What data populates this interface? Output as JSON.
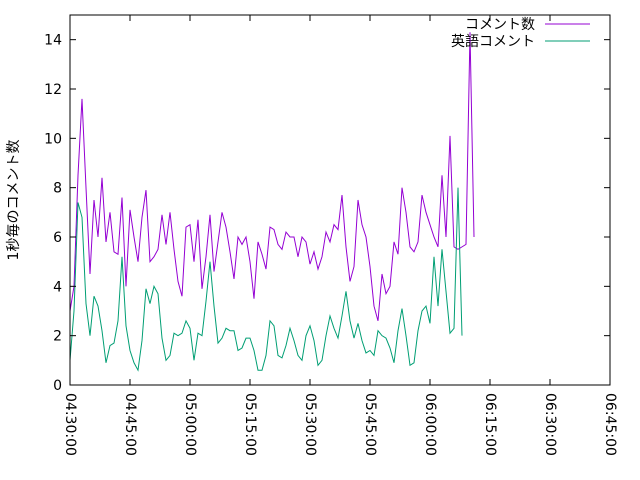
{
  "chart_data": {
    "type": "line",
    "title": "",
    "xlabel": "",
    "ylabel": "1秒毎のコメント数",
    "xlim": [
      "04:30:00",
      "06:45:00"
    ],
    "ylim": [
      0,
      15
    ],
    "x_ticks": [
      "04:30:00",
      "04:45:00",
      "05:00:00",
      "05:15:00",
      "05:30:00",
      "05:45:00",
      "06:00:00",
      "06:15:00",
      "06:30:00",
      "06:45:00"
    ],
    "y_ticks": [
      0,
      2,
      4,
      6,
      8,
      10,
      12,
      14
    ],
    "grid": false,
    "legend_position": "top-right",
    "series": [
      {
        "name": "コメント数",
        "color": "#9400d3",
        "points": [
          [
            "04:30:00",
            3.0
          ],
          [
            "04:31:00",
            4.0
          ],
          [
            "04:32:00",
            8.5
          ],
          [
            "04:33:00",
            11.6
          ],
          [
            "04:34:00",
            8.0
          ],
          [
            "04:35:00",
            4.5
          ],
          [
            "04:36:00",
            7.5
          ],
          [
            "04:37:00",
            6.0
          ],
          [
            "04:38:00",
            8.4
          ],
          [
            "04:39:00",
            5.8
          ],
          [
            "04:40:00",
            7.0
          ],
          [
            "04:41:00",
            5.4
          ],
          [
            "04:42:00",
            5.3
          ],
          [
            "04:43:00",
            7.6
          ],
          [
            "04:44:00",
            4.0
          ],
          [
            "04:45:00",
            7.1
          ],
          [
            "04:46:00",
            6.0
          ],
          [
            "04:47:00",
            5.0
          ],
          [
            "04:48:00",
            6.8
          ],
          [
            "04:49:00",
            7.9
          ],
          [
            "04:50:00",
            5.0
          ],
          [
            "04:51:00",
            5.2
          ],
          [
            "04:52:00",
            5.5
          ],
          [
            "04:53:00",
            6.9
          ],
          [
            "04:54:00",
            5.7
          ],
          [
            "04:55:00",
            7.0
          ],
          [
            "04:56:00",
            5.5
          ],
          [
            "04:57:00",
            4.2
          ],
          [
            "04:58:00",
            3.6
          ],
          [
            "04:59:00",
            6.4
          ],
          [
            "05:00:00",
            6.5
          ],
          [
            "05:01:00",
            5.0
          ],
          [
            "05:02:00",
            6.7
          ],
          [
            "05:03:00",
            3.9
          ],
          [
            "05:04:00",
            5.2
          ],
          [
            "05:05:00",
            6.9
          ],
          [
            "05:06:00",
            4.6
          ],
          [
            "05:07:00",
            5.8
          ],
          [
            "05:08:00",
            7.0
          ],
          [
            "05:09:00",
            6.4
          ],
          [
            "05:10:00",
            5.4
          ],
          [
            "05:11:00",
            4.3
          ],
          [
            "05:12:00",
            6.0
          ],
          [
            "05:13:00",
            5.7
          ],
          [
            "05:14:00",
            6.0
          ],
          [
            "05:15:00",
            5.0
          ],
          [
            "05:16:00",
            3.5
          ],
          [
            "05:17:00",
            5.8
          ],
          [
            "05:18:00",
            5.3
          ],
          [
            "05:19:00",
            4.7
          ],
          [
            "05:20:00",
            6.4
          ],
          [
            "05:21:00",
            6.3
          ],
          [
            "05:22:00",
            5.7
          ],
          [
            "05:23:00",
            5.5
          ],
          [
            "05:24:00",
            6.2
          ],
          [
            "05:25:00",
            6.0
          ],
          [
            "05:26:00",
            6.0
          ],
          [
            "05:27:00",
            5.2
          ],
          [
            "05:28:00",
            6.0
          ],
          [
            "05:29:00",
            5.8
          ],
          [
            "05:30:00",
            4.9
          ],
          [
            "05:31:00",
            5.4
          ],
          [
            "05:32:00",
            4.7
          ],
          [
            "05:33:00",
            5.2
          ],
          [
            "05:34:00",
            6.2
          ],
          [
            "05:35:00",
            5.8
          ],
          [
            "05:36:00",
            6.5
          ],
          [
            "05:37:00",
            6.3
          ],
          [
            "05:38:00",
            7.7
          ],
          [
            "05:39:00",
            5.6
          ],
          [
            "05:40:00",
            4.2
          ],
          [
            "05:41:00",
            4.8
          ],
          [
            "05:42:00",
            7.5
          ],
          [
            "05:43:00",
            6.5
          ],
          [
            "05:44:00",
            6.0
          ],
          [
            "05:45:00",
            4.8
          ],
          [
            "05:46:00",
            3.2
          ],
          [
            "05:47:00",
            2.6
          ],
          [
            "05:48:00",
            4.5
          ],
          [
            "05:49:00",
            3.7
          ],
          [
            "05:50:00",
            4.0
          ],
          [
            "05:51:00",
            5.8
          ],
          [
            "05:52:00",
            5.3
          ],
          [
            "05:53:00",
            8.0
          ],
          [
            "05:54:00",
            7.0
          ],
          [
            "05:55:00",
            5.6
          ],
          [
            "05:56:00",
            5.4
          ],
          [
            "05:57:00",
            5.8
          ],
          [
            "05:58:00",
            7.7
          ],
          [
            "05:59:00",
            7.0
          ],
          [
            "06:00:00",
            6.5
          ],
          [
            "06:01:00",
            6.0
          ],
          [
            "06:02:00",
            5.6
          ],
          [
            "06:03:00",
            8.5
          ],
          [
            "06:04:00",
            6.0
          ],
          [
            "06:05:00",
            10.1
          ],
          [
            "06:06:00",
            5.6
          ],
          [
            "06:07:00",
            5.5
          ],
          [
            "06:08:00",
            5.6
          ],
          [
            "06:09:00",
            5.7
          ],
          [
            "06:10:00",
            14.3
          ],
          [
            "06:11:00",
            6.0
          ]
        ]
      },
      {
        "name": "英語コメント",
        "color": "#009e73",
        "points": [
          [
            "04:30:00",
            1.0
          ],
          [
            "04:31:00",
            3.0
          ],
          [
            "04:32:00",
            7.4
          ],
          [
            "04:33:00",
            6.8
          ],
          [
            "04:34:00",
            3.3
          ],
          [
            "04:35:00",
            2.0
          ],
          [
            "04:36:00",
            3.6
          ],
          [
            "04:37:00",
            3.2
          ],
          [
            "04:38:00",
            2.2
          ],
          [
            "04:39:00",
            0.9
          ],
          [
            "04:40:00",
            1.6
          ],
          [
            "04:41:00",
            1.7
          ],
          [
            "04:42:00",
            2.6
          ],
          [
            "04:43:00",
            5.2
          ],
          [
            "04:44:00",
            2.4
          ],
          [
            "04:45:00",
            1.4
          ],
          [
            "04:46:00",
            0.9
          ],
          [
            "04:47:00",
            0.6
          ],
          [
            "04:48:00",
            1.8
          ],
          [
            "04:49:00",
            3.9
          ],
          [
            "04:50:00",
            3.3
          ],
          [
            "04:51:00",
            4.0
          ],
          [
            "04:52:00",
            3.7
          ],
          [
            "04:53:00",
            1.9
          ],
          [
            "04:54:00",
            1.0
          ],
          [
            "04:55:00",
            1.2
          ],
          [
            "04:56:00",
            2.1
          ],
          [
            "04:57:00",
            2.0
          ],
          [
            "04:58:00",
            2.1
          ],
          [
            "04:59:00",
            2.6
          ],
          [
            "05:00:00",
            2.3
          ],
          [
            "05:01:00",
            1.0
          ],
          [
            "05:02:00",
            2.1
          ],
          [
            "05:03:00",
            2.0
          ],
          [
            "05:04:00",
            3.4
          ],
          [
            "05:05:00",
            5.0
          ],
          [
            "05:06:00",
            3.2
          ],
          [
            "05:07:00",
            1.7
          ],
          [
            "05:08:00",
            1.9
          ],
          [
            "05:09:00",
            2.3
          ],
          [
            "05:10:00",
            2.2
          ],
          [
            "05:11:00",
            2.2
          ],
          [
            "05:12:00",
            1.4
          ],
          [
            "05:13:00",
            1.5
          ],
          [
            "05:14:00",
            1.9
          ],
          [
            "05:15:00",
            1.9
          ],
          [
            "05:16:00",
            1.4
          ],
          [
            "05:17:00",
            0.6
          ],
          [
            "05:18:00",
            0.6
          ],
          [
            "05:19:00",
            1.2
          ],
          [
            "05:20:00",
            2.6
          ],
          [
            "05:21:00",
            2.4
          ],
          [
            "05:22:00",
            1.2
          ],
          [
            "05:23:00",
            1.1
          ],
          [
            "05:24:00",
            1.6
          ],
          [
            "05:25:00",
            2.3
          ],
          [
            "05:26:00",
            1.8
          ],
          [
            "05:27:00",
            1.2
          ],
          [
            "05:28:00",
            1.0
          ],
          [
            "05:29:00",
            2.0
          ],
          [
            "05:30:00",
            2.4
          ],
          [
            "05:31:00",
            1.8
          ],
          [
            "05:32:00",
            0.8
          ],
          [
            "05:33:00",
            1.0
          ],
          [
            "05:34:00",
            2.0
          ],
          [
            "05:35:00",
            2.8
          ],
          [
            "05:36:00",
            2.3
          ],
          [
            "05:37:00",
            1.9
          ],
          [
            "05:38:00",
            2.8
          ],
          [
            "05:39:00",
            3.8
          ],
          [
            "05:40:00",
            2.6
          ],
          [
            "05:41:00",
            1.9
          ],
          [
            "05:42:00",
            2.5
          ],
          [
            "05:43:00",
            1.8
          ],
          [
            "05:44:00",
            1.3
          ],
          [
            "05:45:00",
            1.4
          ],
          [
            "05:46:00",
            1.2
          ],
          [
            "05:47:00",
            2.2
          ],
          [
            "05:48:00",
            2.0
          ],
          [
            "05:49:00",
            1.9
          ],
          [
            "05:50:00",
            1.5
          ],
          [
            "05:51:00",
            0.9
          ],
          [
            "05:52:00",
            2.2
          ],
          [
            "05:53:00",
            3.1
          ],
          [
            "05:54:00",
            2.0
          ],
          [
            "05:55:00",
            0.8
          ],
          [
            "05:56:00",
            0.9
          ],
          [
            "05:57:00",
            2.2
          ],
          [
            "05:58:00",
            3.0
          ],
          [
            "05:59:00",
            3.2
          ],
          [
            "06:00:00",
            2.5
          ],
          [
            "06:01:00",
            5.2
          ],
          [
            "06:02:00",
            3.2
          ],
          [
            "06:03:00",
            5.5
          ],
          [
            "06:04:00",
            3.8
          ],
          [
            "06:05:00",
            2.1
          ],
          [
            "06:06:00",
            2.3
          ],
          [
            "06:07:00",
            8.0
          ],
          [
            "06:08:00",
            2.0
          ]
        ]
      }
    ]
  }
}
